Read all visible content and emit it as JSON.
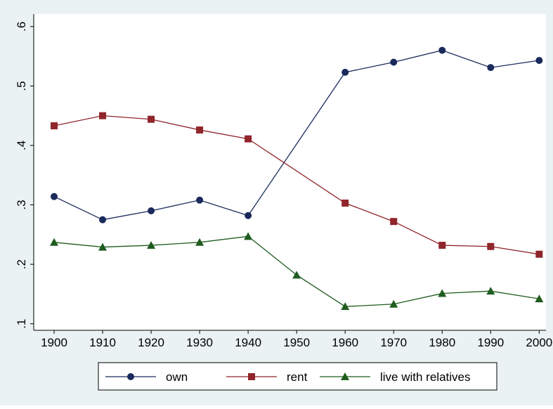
{
  "chart_data": {
    "type": "line",
    "xlim": [
      1895.8,
      2001.4
    ],
    "xticks": [
      1900,
      1910,
      1920,
      1930,
      1940,
      1950,
      1960,
      1970,
      1980,
      1990,
      2000
    ],
    "ylim": [
      0.089,
      0.621
    ],
    "yticks": [
      {
        "value": 0.1,
        "label": ".1"
      },
      {
        "value": 0.2,
        "label": ".2"
      },
      {
        "value": 0.3,
        "label": ".3"
      },
      {
        "value": 0.4,
        "label": ".4"
      },
      {
        "value": 0.5,
        "label": ".5"
      },
      {
        "value": 0.6,
        "label": ".6"
      }
    ],
    "series": [
      {
        "name": "own",
        "color": "#1a2a5c",
        "marker": "circle",
        "x": [
          1900,
          1910,
          1920,
          1930,
          1940,
          1960,
          1970,
          1980,
          1990,
          2000
        ],
        "values": [
          0.314,
          0.275,
          0.29,
          0.308,
          0.282,
          0.523,
          0.54,
          0.56,
          0.531,
          0.543
        ]
      },
      {
        "name": "rent",
        "color": "#90252b",
        "marker": "square",
        "x": [
          1900,
          1910,
          1920,
          1930,
          1940,
          1960,
          1970,
          1980,
          1990,
          2000
        ],
        "values": [
          0.433,
          0.45,
          0.444,
          0.426,
          0.411,
          0.303,
          0.272,
          0.232,
          0.23,
          0.217
        ]
      },
      {
        "name": "live with relatives",
        "color": "#1f5c1f",
        "marker": "triangle",
        "x": [
          1900,
          1910,
          1920,
          1930,
          1940,
          1950,
          1960,
          1970,
          1980,
          1990,
          2000
        ],
        "values": [
          0.237,
          0.229,
          0.232,
          0.237,
          0.247,
          0.182,
          0.129,
          0.133,
          0.151,
          0.155,
          0.142
        ]
      }
    ]
  }
}
